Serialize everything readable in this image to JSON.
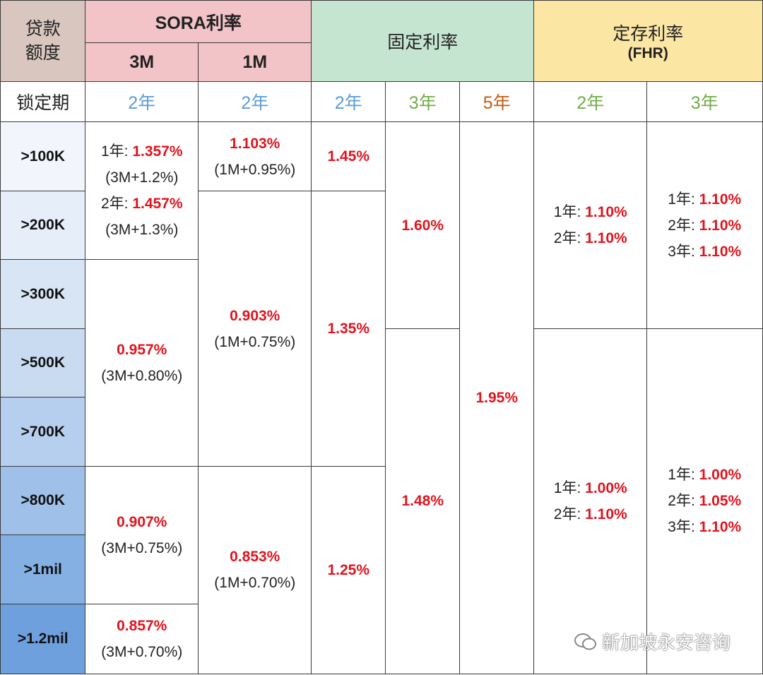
{
  "header": {
    "loan_amount": "贷款额度",
    "sora": "SORA利率",
    "sora_3m": "3M",
    "sora_1m": "1M",
    "fixed": "固定利率",
    "deposit": "定存利率",
    "deposit_sub": "(FHR)"
  },
  "lock_period": {
    "label": "锁定期",
    "terms": [
      "2年",
      "2年",
      "2年",
      "3年",
      "5年",
      "2年",
      "3年"
    ]
  },
  "amounts": [
    ">100K",
    ">200K",
    ">300K",
    ">500K",
    ">700K",
    ">800K",
    ">1mil",
    ">1.2mil"
  ],
  "columns": [
    {
      "cells": [
        [
          {
            "prefix": "1年:",
            "rate": "1.357%"
          },
          {
            "note": "(3M+1.2%)"
          },
          {
            "prefix": "2年:",
            "rate": "1.457%"
          },
          {
            "note": "(3M+1.3%)"
          }
        ],
        [
          {
            "rate": "0.957%"
          },
          {
            "note": "(3M+0.80%)"
          }
        ],
        [
          {
            "rate": "0.907%"
          },
          {
            "note": "(3M+0.75%)"
          }
        ],
        [
          {
            "rate": "0.857%"
          },
          {
            "note": "(3M+0.70%)"
          }
        ]
      ]
    },
    {
      "cells": [
        [
          {
            "rate": "1.103%"
          },
          {
            "note": "(1M+0.95%)"
          }
        ],
        [
          {
            "rate": "0.903%"
          },
          {
            "note": "(1M+0.75%)"
          }
        ],
        [
          {
            "rate": "0.853%"
          },
          {
            "note": "(1M+0.70%)"
          }
        ]
      ]
    },
    {
      "cells": [
        [
          {
            "rate": "1.45%"
          }
        ],
        [
          {
            "rate": "1.35%"
          }
        ],
        [
          {
            "rate": "1.25%"
          }
        ]
      ]
    },
    {
      "cells": [
        [
          {
            "rate": "1.60%"
          }
        ],
        [
          {
            "rate": "1.48%"
          }
        ]
      ]
    },
    {
      "cells": [
        [
          {
            "rate": "1.95%"
          }
        ]
      ]
    },
    {
      "cells": [
        [
          {
            "prefix": "1年:",
            "rate": "1.10%"
          },
          {
            "prefix": "2年:",
            "rate": "1.10%"
          }
        ],
        [
          {
            "prefix": "1年:",
            "rate": "1.00%"
          },
          {
            "prefix": "2年:",
            "rate": "1.10%"
          }
        ]
      ]
    },
    {
      "cells": [
        [
          {
            "prefix": "1年:",
            "rate": "1.10%"
          },
          {
            "prefix": "2年:",
            "rate": "1.10%"
          },
          {
            "prefix": "3年:",
            "rate": "1.10%"
          }
        ],
        [
          {
            "prefix": "1年:",
            "rate": "1.00%"
          },
          {
            "prefix": "2年:",
            "rate": "1.05%"
          },
          {
            "prefix": "3年:",
            "rate": "1.10%"
          }
        ]
      ]
    }
  ],
  "watermark": "新加坡永安咨询"
}
